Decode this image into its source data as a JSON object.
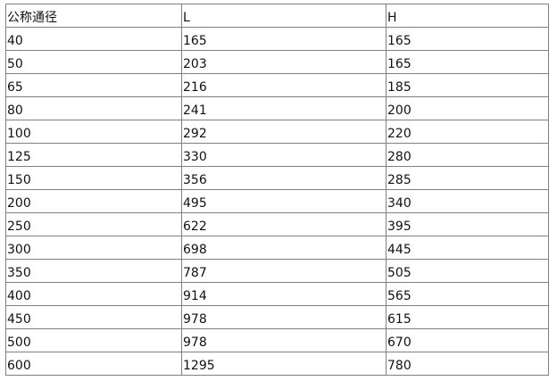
{
  "table": {
    "headers": [
      "公称通径",
      "L",
      "H"
    ],
    "rows": [
      [
        "40",
        "165",
        "165"
      ],
      [
        "50",
        "203",
        "165"
      ],
      [
        "65",
        "216",
        "185"
      ],
      [
        "80",
        "241",
        "200"
      ],
      [
        "100",
        "292",
        "220"
      ],
      [
        "125",
        "330",
        "280"
      ],
      [
        "150",
        "356",
        "285"
      ],
      [
        "200",
        "495",
        "340"
      ],
      [
        "250",
        "622",
        "395"
      ],
      [
        "300",
        "698",
        "445"
      ],
      [
        "350",
        "787",
        "505"
      ],
      [
        "400",
        "914",
        "565"
      ],
      [
        "450",
        "978",
        "615"
      ],
      [
        "500",
        "978",
        "670"
      ],
      [
        "600",
        "1295",
        "780"
      ]
    ]
  }
}
